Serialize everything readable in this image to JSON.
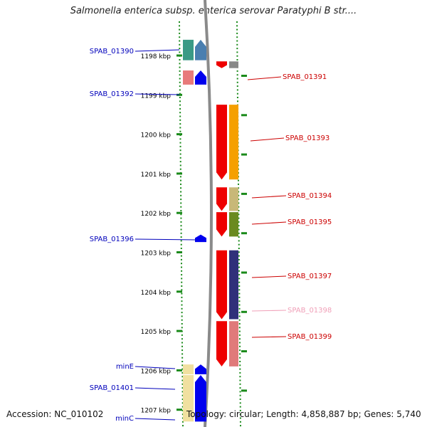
{
  "title": "Salmonella enterica subsp. enterica serovar Paratyphi B str....",
  "footer": {
    "accession": "Accession: NC_010102",
    "stats": "Topology: circular; Length: 4,858,887 bp; Genes: 5,740"
  },
  "colors": {
    "backbone": "#8a8a8a",
    "tick_dots": "#1a8a1a",
    "left_label": "#0000bb",
    "right_label": "#cc0000",
    "right_label_faded": "#f0a0b8"
  },
  "axis": {
    "start_kbp": 1197.6,
    "end_kbp": 1207.3,
    "tick_unit": "kbp",
    "ticks": [
      1198,
      1199,
      1200,
      1201,
      1202,
      1203,
      1204,
      1205,
      1206,
      1207
    ]
  },
  "minus_strand_genes": [
    {
      "name": "SPAB_01390",
      "start_kbp": 1197.6,
      "end_kbp": 1198.12,
      "color": "#4a7fb0",
      "cog": "#3b9a86"
    },
    {
      "name": "SPAB_01392",
      "start_kbp": 1198.38,
      "end_kbp": 1198.74,
      "color": "#0000ee",
      "cog": "#e87a7a"
    },
    {
      "name": "SPAB_01396",
      "start_kbp": 1202.55,
      "end_kbp": 1202.74,
      "color": "#0000ee",
      "cog": null
    },
    {
      "name": "minE",
      "start_kbp": 1205.85,
      "end_kbp": 1206.1,
      "color": "#0000ee",
      "cog": "#f0e0a0"
    },
    {
      "name": "SPAB_01401",
      "start_kbp": 1206.12,
      "end_kbp": 1207.3,
      "color": "#0000ee",
      "cog": "#f0e0a0"
    },
    {
      "name": "minC",
      "start_kbp": 1207.25,
      "end_kbp": 1207.3,
      "color": "#0000ee",
      "cog": null
    }
  ],
  "plus_strand_genes": [
    {
      "name": "SPAB_01391",
      "start_kbp": 1198.15,
      "end_kbp": 1198.32,
      "color": "#ee0000",
      "cog": "#888888",
      "faded": false
    },
    {
      "name": "SPAB_01393",
      "start_kbp": 1199.25,
      "end_kbp": 1201.15,
      "color": "#ee0000",
      "cog": "#f5a000",
      "faded": false
    },
    {
      "name": "SPAB_01394",
      "start_kbp": 1201.35,
      "end_kbp": 1201.95,
      "color": "#ee0000",
      "cog": "#c8b878",
      "faded": false
    },
    {
      "name": "SPAB_01395",
      "start_kbp": 1201.98,
      "end_kbp": 1202.6,
      "color": "#ee0000",
      "cog": "#6a8a20",
      "faded": false
    },
    {
      "name": "SPAB_01397",
      "start_kbp": 1202.95,
      "end_kbp": 1204.7,
      "color": "#ee0000",
      "cog": "#30307a",
      "faded": false
    },
    {
      "name": "SPAB_01398",
      "start_kbp": 1204.72,
      "end_kbp": 1204.74,
      "color": "#ee0000",
      "cog": null,
      "faded": true
    },
    {
      "name": "SPAB_01399",
      "start_kbp": 1204.75,
      "end_kbp": 1205.9,
      "color": "#ee0000",
      "cog": "#e07a7a",
      "faded": false
    }
  ]
}
